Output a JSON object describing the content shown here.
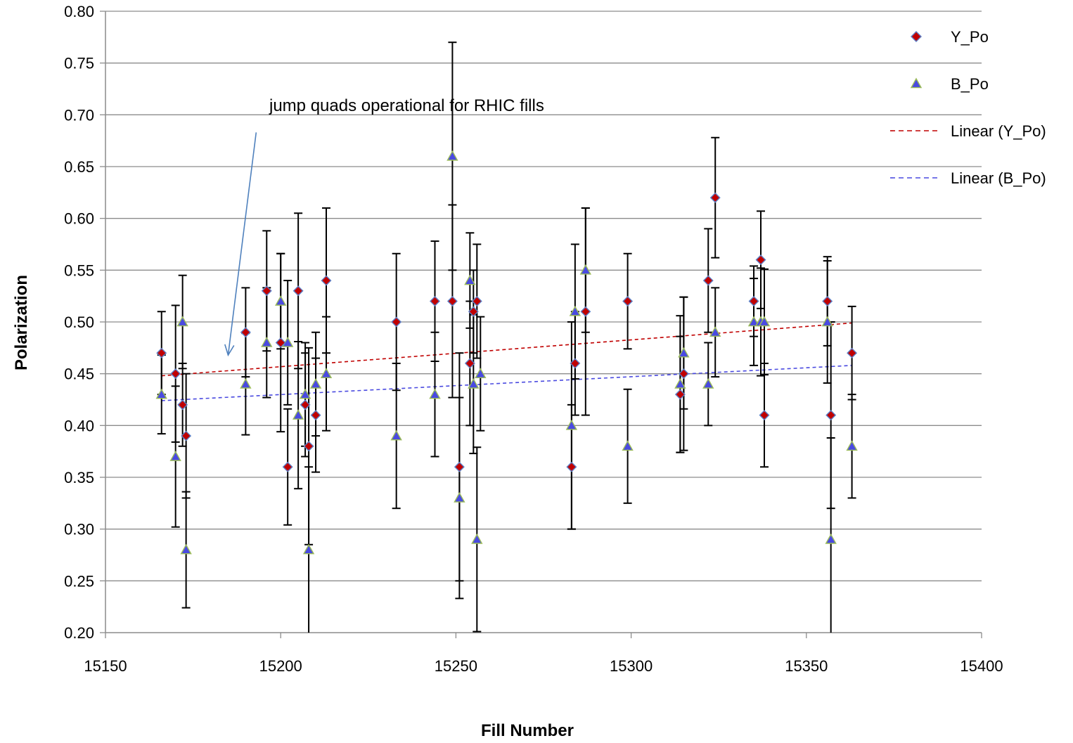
{
  "chart_data": {
    "type": "scatter",
    "title": "",
    "xlabel": "Fill Number",
    "ylabel": "Polarization",
    "xlim": [
      15150,
      15400
    ],
    "ylim": [
      0.2,
      0.8
    ],
    "x_ticks": [
      "15150",
      "15200",
      "15250",
      "15300",
      "15350",
      "15400"
    ],
    "y_ticks": [
      "0.20",
      "0.25",
      "0.30",
      "0.35",
      "0.40",
      "0.45",
      "0.50",
      "0.55",
      "0.60",
      "0.65",
      "0.70",
      "0.75",
      "0.80"
    ],
    "grid": "horizontal",
    "legend_position": "top-right",
    "series": [
      {
        "name": "Y_Po",
        "marker": "diamond",
        "color": "#C00000",
        "edge_color": "#5B7FC6",
        "points": [
          {
            "x": 15166,
            "y": 0.47,
            "err": 0.04
          },
          {
            "x": 15170,
            "y": 0.45,
            "err": 0.066
          },
          {
            "x": 15172,
            "y": 0.42,
            "err": 0.04
          },
          {
            "x": 15173,
            "y": 0.39,
            "err": 0.06
          },
          {
            "x": 15190,
            "y": 0.49,
            "err": 0.043
          },
          {
            "x": 15196,
            "y": 0.53,
            "err": 0.058
          },
          {
            "x": 15200,
            "y": 0.48,
            "err": 0.086
          },
          {
            "x": 15202,
            "y": 0.36,
            "err": 0.056
          },
          {
            "x": 15205,
            "y": 0.53,
            "err": 0.075
          },
          {
            "x": 15207,
            "y": 0.42,
            "err": 0.05
          },
          {
            "x": 15208,
            "y": 0.38,
            "err": 0.095
          },
          {
            "x": 15210,
            "y": 0.41,
            "err": 0.055
          },
          {
            "x": 15213,
            "y": 0.54,
            "err": 0.07
          },
          {
            "x": 15233,
            "y": 0.5,
            "err": 0.066
          },
          {
            "x": 15244,
            "y": 0.52,
            "err": 0.058
          },
          {
            "x": 15249,
            "y": 0.52,
            "err": 0.093
          },
          {
            "x": 15251,
            "y": 0.36,
            "err": 0.11
          },
          {
            "x": 15254,
            "y": 0.46,
            "err": 0.06
          },
          {
            "x": 15255,
            "y": 0.51,
            "err": 0.04
          },
          {
            "x": 15256,
            "y": 0.52,
            "err": 0.055
          },
          {
            "x": 15283,
            "y": 0.36,
            "err": 0.06
          },
          {
            "x": 15284,
            "y": 0.46,
            "err": 0.05
          },
          {
            "x": 15287,
            "y": 0.51,
            "err": 0.1
          },
          {
            "x": 15299,
            "y": 0.52,
            "err": 0.046
          },
          {
            "x": 15314,
            "y": 0.43,
            "err": 0.056
          },
          {
            "x": 15315,
            "y": 0.45,
            "err": 0.074
          },
          {
            "x": 15322,
            "y": 0.54,
            "err": 0.05
          },
          {
            "x": 15324,
            "y": 0.62,
            "err": 0.058
          },
          {
            "x": 15335,
            "y": 0.52,
            "err": 0.034
          },
          {
            "x": 15337,
            "y": 0.56,
            "err": 0.047
          },
          {
            "x": 15338,
            "y": 0.41,
            "err": 0.05
          },
          {
            "x": 15356,
            "y": 0.52,
            "err": 0.043
          },
          {
            "x": 15357,
            "y": 0.41,
            "err": 0.09
          },
          {
            "x": 15363,
            "y": 0.47,
            "err": 0.045
          }
        ]
      },
      {
        "name": "B_Po",
        "marker": "triangle",
        "color": "#4A4AE0",
        "edge_color": "#9BBB59",
        "points": [
          {
            "x": 15166,
            "y": 0.43,
            "err": 0.038
          },
          {
            "x": 15170,
            "y": 0.37,
            "err": 0.068
          },
          {
            "x": 15172,
            "y": 0.5,
            "err": 0.045
          },
          {
            "x": 15173,
            "y": 0.28,
            "err": 0.056
          },
          {
            "x": 15190,
            "y": 0.44,
            "err": 0.049
          },
          {
            "x": 15196,
            "y": 0.48,
            "err": 0.053
          },
          {
            "x": 15200,
            "y": 0.52,
            "err": 0.046
          },
          {
            "x": 15202,
            "y": 0.48,
            "err": 0.06
          },
          {
            "x": 15205,
            "y": 0.41,
            "err": 0.071
          },
          {
            "x": 15207,
            "y": 0.43,
            "err": 0.05
          },
          {
            "x": 15208,
            "y": 0.28,
            "err": 0.08
          },
          {
            "x": 15210,
            "y": 0.44,
            "err": 0.05
          },
          {
            "x": 15213,
            "y": 0.45,
            "err": 0.055
          },
          {
            "x": 15233,
            "y": 0.39,
            "err": 0.07
          },
          {
            "x": 15244,
            "y": 0.43,
            "err": 0.06
          },
          {
            "x": 15249,
            "y": 0.66,
            "err": 0.11
          },
          {
            "x": 15251,
            "y": 0.33,
            "err": 0.097
          },
          {
            "x": 15254,
            "y": 0.54,
            "err": 0.046
          },
          {
            "x": 15255,
            "y": 0.44,
            "err": 0.067
          },
          {
            "x": 15256,
            "y": 0.29,
            "err": 0.089
          },
          {
            "x": 15257,
            "y": 0.45,
            "err": 0.055
          },
          {
            "x": 15283,
            "y": 0.4,
            "err": 0.1
          },
          {
            "x": 15284,
            "y": 0.51,
            "err": 0.065
          },
          {
            "x": 15287,
            "y": 0.55,
            "err": 0.06
          },
          {
            "x": 15299,
            "y": 0.38,
            "err": 0.055
          },
          {
            "x": 15314,
            "y": 0.44,
            "err": 0.066
          },
          {
            "x": 15315,
            "y": 0.47,
            "err": 0.054
          },
          {
            "x": 15322,
            "y": 0.44,
            "err": 0.04
          },
          {
            "x": 15324,
            "y": 0.49,
            "err": 0.043
          },
          {
            "x": 15335,
            "y": 0.5,
            "err": 0.042
          },
          {
            "x": 15337,
            "y": 0.5,
            "err": 0.052
          },
          {
            "x": 15338,
            "y": 0.5,
            "err": 0.051
          },
          {
            "x": 15356,
            "y": 0.5,
            "err": 0.059
          },
          {
            "x": 15357,
            "y": 0.29,
            "err": 0.098
          },
          {
            "x": 15363,
            "y": 0.38,
            "err": 0.05
          }
        ]
      }
    ],
    "trendlines": [
      {
        "name": "Linear (Y_Po)",
        "color": "#C00000",
        "dash": "dashed",
        "x": [
          15166,
          15363
        ],
        "y": [
          0.448,
          0.499
        ]
      },
      {
        "name": "Linear (B_Po)",
        "color": "#4A4AE0",
        "dash": "dashed",
        "x": [
          15166,
          15363
        ],
        "y": [
          0.424,
          0.458
        ]
      }
    ],
    "annotations": [
      {
        "text": "jump quads operational for RHIC fills",
        "arrow_from": [
          15193,
          0.683
        ],
        "arrow_to": [
          15185,
          0.468
        ]
      }
    ]
  }
}
